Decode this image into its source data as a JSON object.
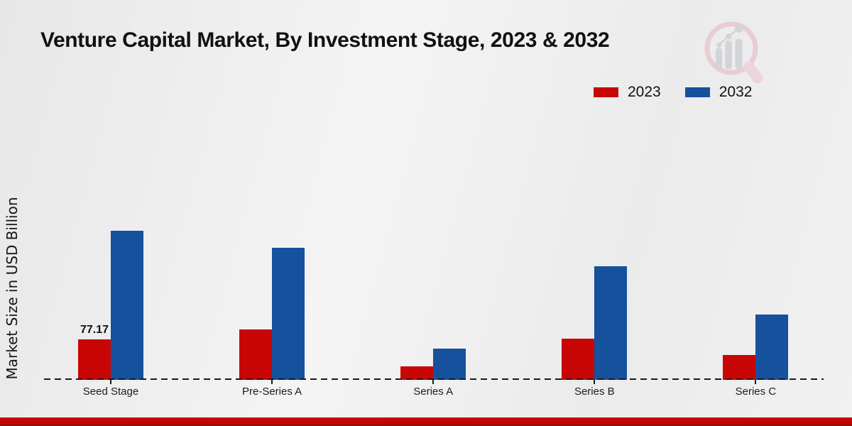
{
  "title": "Venture Capital Market, By Investment Stage, 2023 & 2032",
  "y_axis": {
    "label": "Market Size in USD Billion"
  },
  "legend": {
    "items": [
      {
        "label": "2023",
        "color": "#c80606"
      },
      {
        "label": "2032",
        "color": "#15519c"
      }
    ]
  },
  "annotation": {
    "text": "77.17",
    "series_index": 0,
    "category_index": 0
  },
  "colors": {
    "series_2023": "#c80606",
    "series_2032": "#15519c",
    "footer_bar": "#c50404",
    "axis_line": "#1a1a1a"
  },
  "icons": {
    "watermark": "bar-chart-magnifier-logo"
  },
  "chart_data": {
    "type": "bar",
    "title": "Venture Capital Market, By Investment Stage, 2023 & 2032",
    "categories": [
      "Seed Stage",
      "Pre-Series A",
      "Series A",
      "Series B",
      "Series C"
    ],
    "series": [
      {
        "name": "2023",
        "color": "#c80606",
        "values": [
          77.17,
          96.5,
          26,
          78.5,
          47.5
        ]
      },
      {
        "name": "2032",
        "color": "#15519c",
        "values": [
          285,
          253,
          60,
          217.5,
          125
        ]
      }
    ],
    "xlabel": "",
    "ylabel": "Market Size in USD Billion",
    "ylim": [
      0,
      300
    ],
    "grid": false,
    "y_axis_ticks_visible": false,
    "legend_position": "top-right",
    "data_labels_note": "Only the Seed Stage 2023 bar shows an explicit value label: 77.17; all other values estimated from bar heights"
  }
}
